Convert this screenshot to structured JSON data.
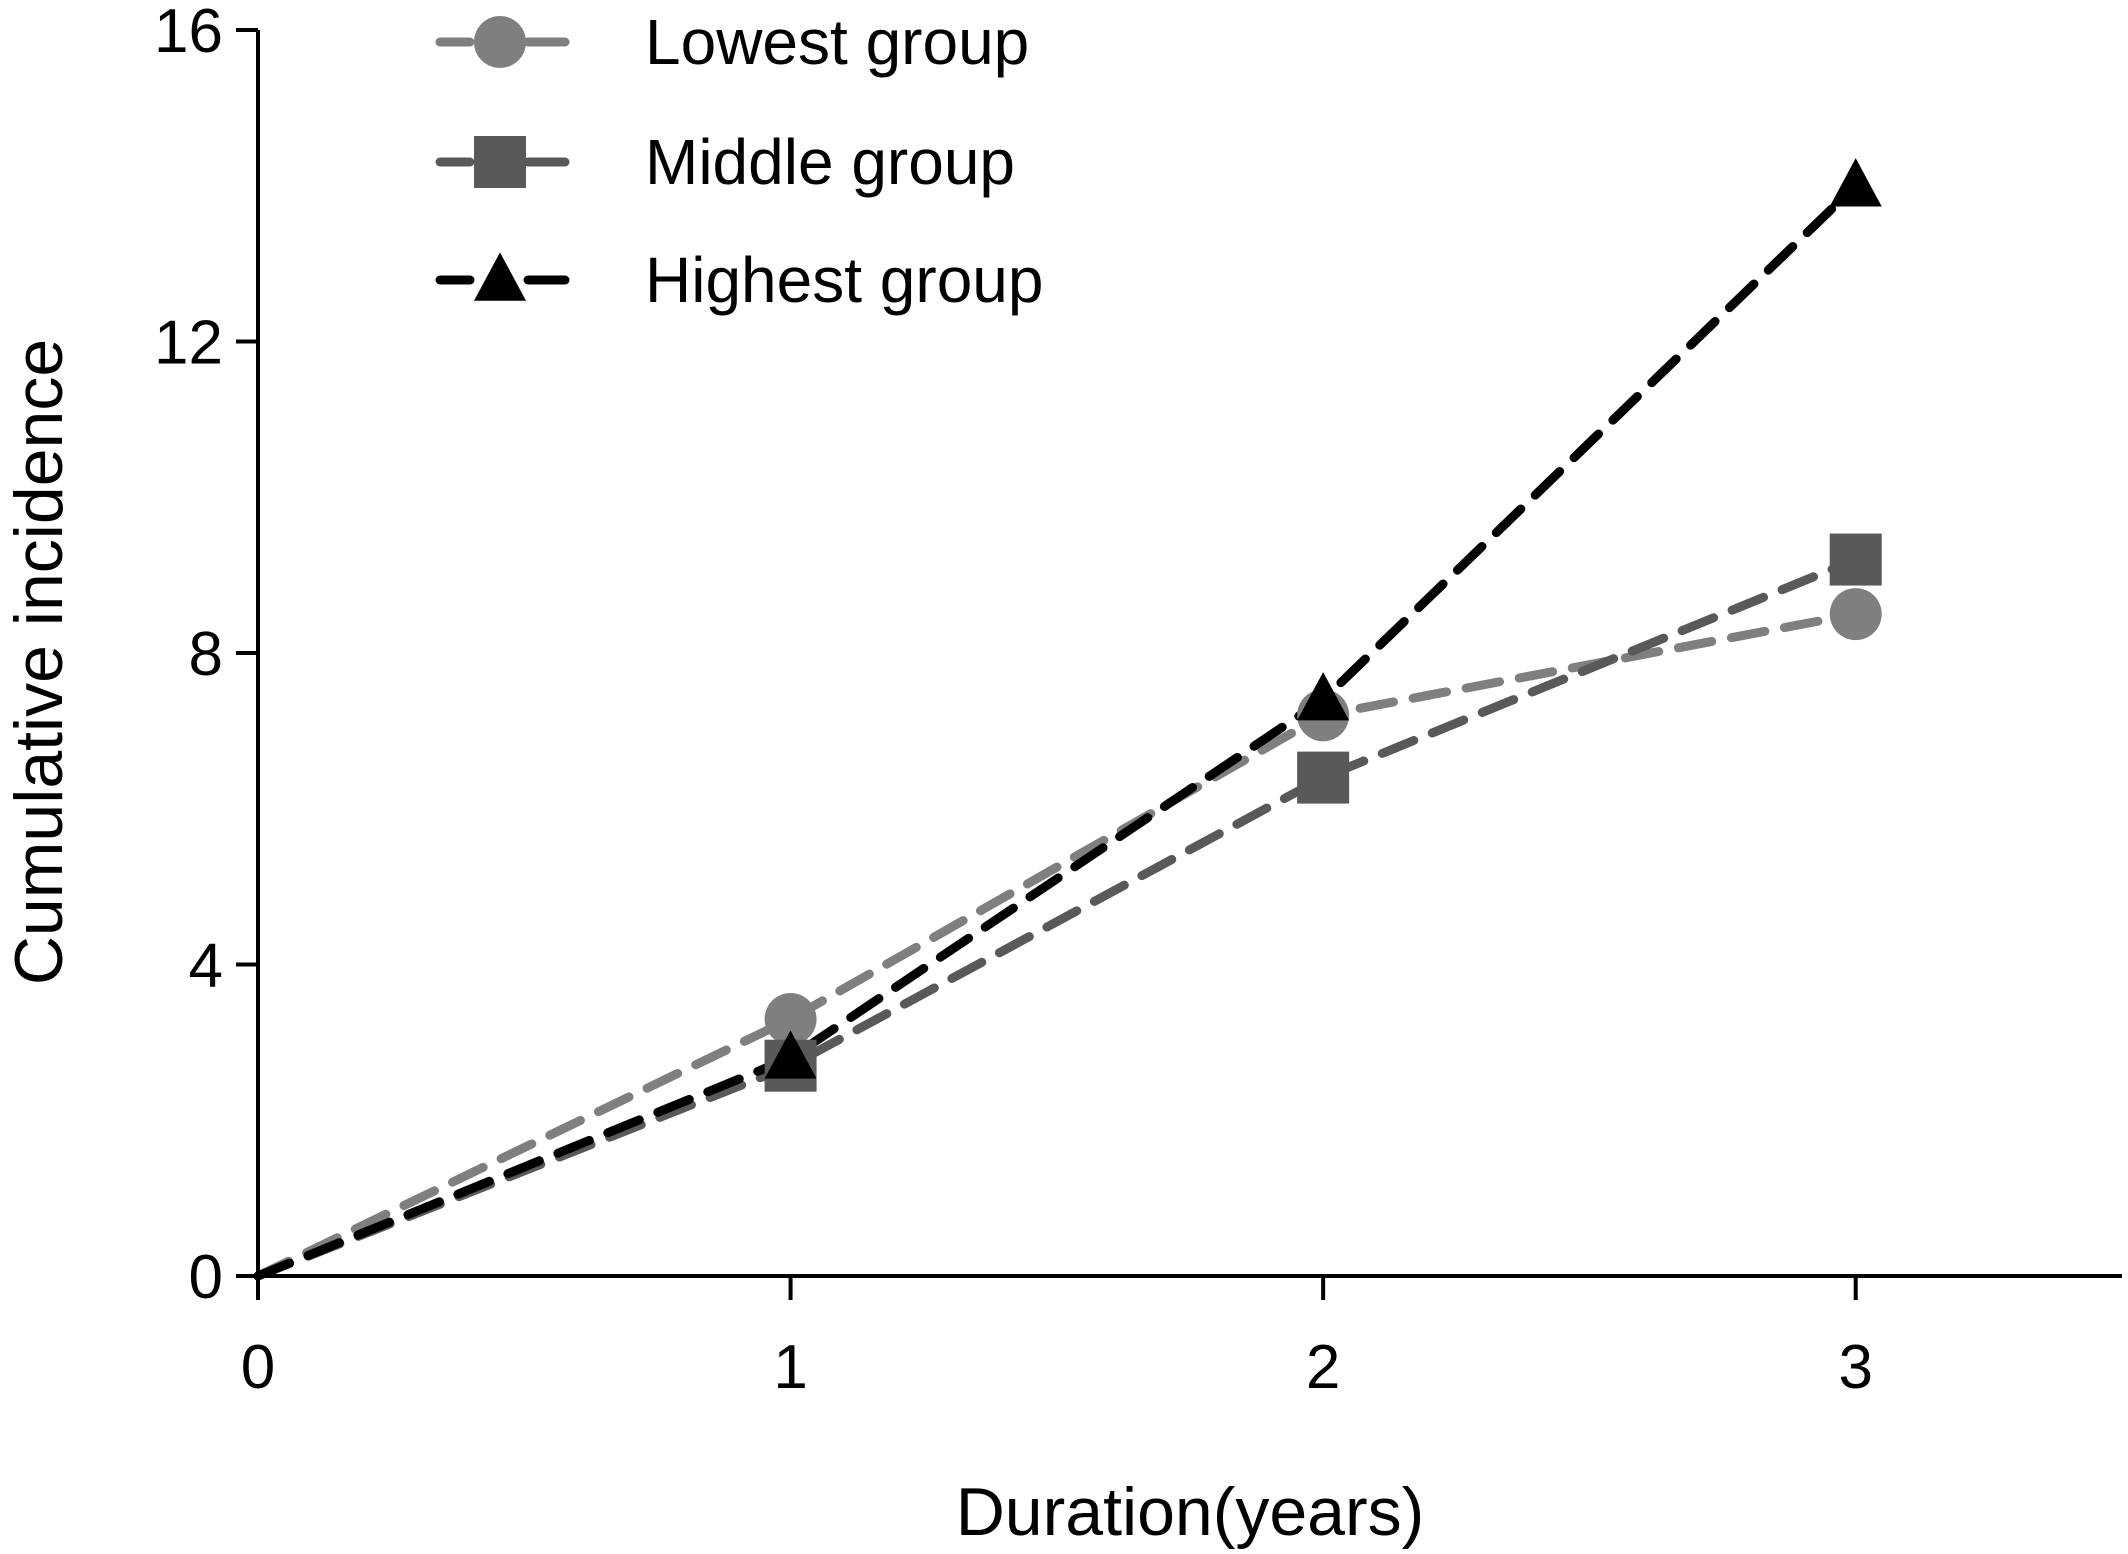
{
  "chart_data": {
    "type": "line",
    "title": "",
    "xlabel": "Duration(years)",
    "ylabel": "Cumulative incidence",
    "x": [
      0,
      1,
      2,
      3
    ],
    "xlim": [
      0,
      3.5
    ],
    "ylim": [
      0,
      16
    ],
    "xticks": [
      "0",
      "1",
      "2",
      "3"
    ],
    "yticks": [
      "0",
      "4",
      "8",
      "12",
      "16"
    ],
    "grid": false,
    "legend_position": "top-left",
    "series": [
      {
        "name": "Lowest group",
        "values": [
          0,
          3.3,
          7.2,
          8.5
        ],
        "marker": "circle",
        "color": "#7f7f7f"
      },
      {
        "name": "Middle group",
        "values": [
          0,
          2.7,
          6.4,
          9.2
        ],
        "marker": "square",
        "color": "#595959"
      },
      {
        "name": "Highest group",
        "values": [
          0,
          2.8,
          7.4,
          14.0
        ],
        "marker": "triangle",
        "color": "#000000"
      }
    ]
  }
}
